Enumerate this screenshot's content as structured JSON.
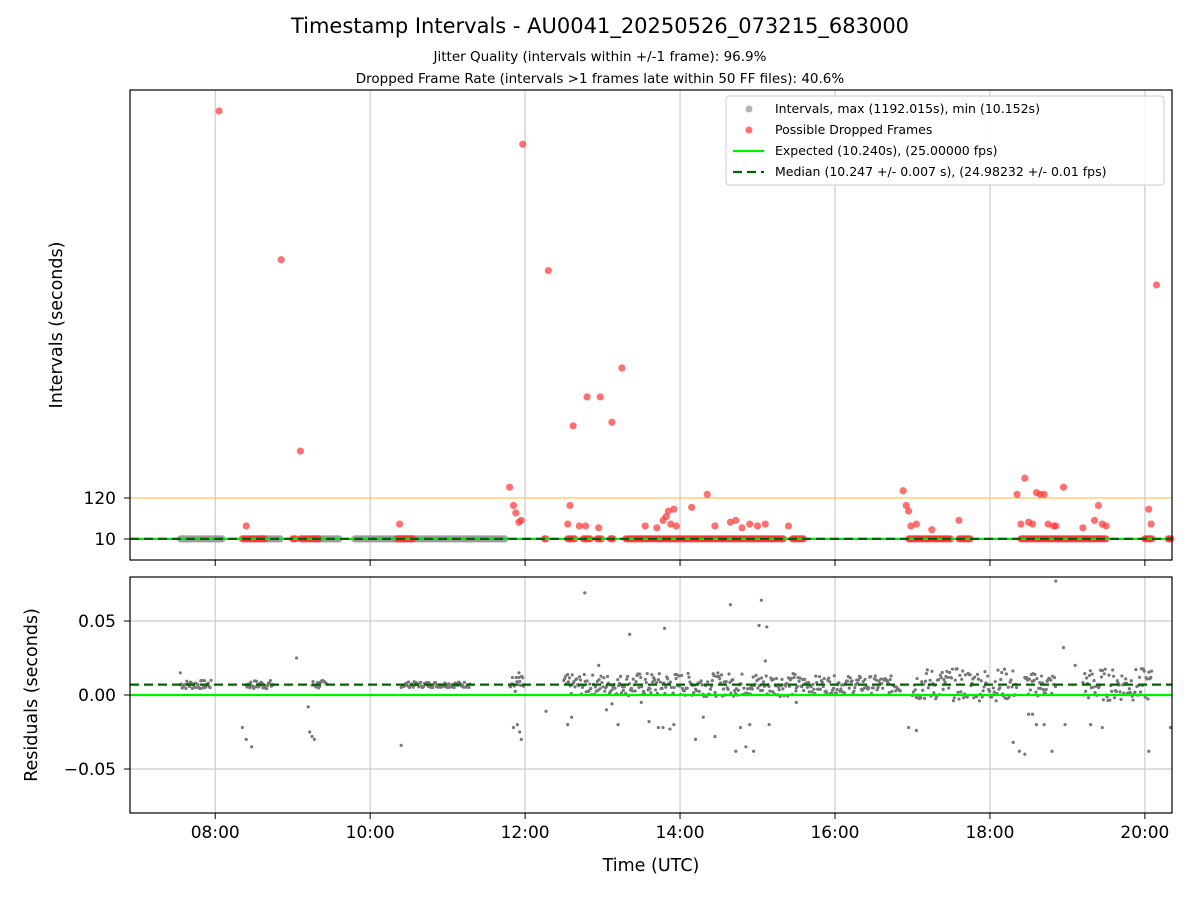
{
  "title": "Timestamp Intervals - AU0041_20250526_073215_683000",
  "subtitle_1": "Jitter Quality (intervals within +/-1 frame): 96.9%",
  "subtitle_2": "Dropped Frame Rate (intervals >1 frames late within 50 FF files): 40.6%",
  "colors": {
    "intervals": "#999999",
    "dropped": "#ff3333",
    "expected": "#00ee00",
    "median": "#006400",
    "threshold": "#ffc864",
    "residual_points": "#777777",
    "grid": "#cccccc"
  },
  "chart_data": [
    {
      "type": "scatter",
      "name": "intervals",
      "ylabel": "Intervals (seconds)",
      "yticks": [
        "10",
        "120"
      ],
      "grid": "x only",
      "legend_position": "top-right",
      "legend": [
        "Intervals, max (1192.015s), min (10.152s)",
        "Possible Dropped Frames",
        "Expected (10.240s), (25.00000 fps)",
        "Median (10.247 +/- 0.007 s), (24.98232 +/- 0.01 fps)"
      ],
      "expected_interval": 10.24,
      "median_interval": 10.247,
      "dropped_threshold": 120,
      "normal_segments_hours": [
        [
          7.55,
          8.1
        ],
        [
          8.6,
          8.85
        ],
        [
          9.3,
          9.6
        ],
        [
          9.8,
          11.75
        ]
      ],
      "dropped_outliers": [
        {
          "x": 8.05,
          "y": 1192.0
        },
        {
          "x": 8.4,
          "y": 45
        },
        {
          "x": 8.85,
          "y": 780
        },
        {
          "x": 9.1,
          "y": 250
        },
        {
          "x": 10.38,
          "y": 50
        },
        {
          "x": 11.8,
          "y": 150
        },
        {
          "x": 11.85,
          "y": 100
        },
        {
          "x": 11.88,
          "y": 80
        },
        {
          "x": 11.92,
          "y": 55
        },
        {
          "x": 11.95,
          "y": 60
        },
        {
          "x": 11.97,
          "y": 1100
        },
        {
          "x": 12.3,
          "y": 750
        },
        {
          "x": 12.55,
          "y": 50
        },
        {
          "x": 12.58,
          "y": 100
        },
        {
          "x": 12.62,
          "y": 320
        },
        {
          "x": 12.7,
          "y": 45
        },
        {
          "x": 12.78,
          "y": 45
        },
        {
          "x": 12.8,
          "y": 400
        },
        {
          "x": 12.95,
          "y": 40
        },
        {
          "x": 12.97,
          "y": 400
        },
        {
          "x": 13.12,
          "y": 330
        },
        {
          "x": 13.25,
          "y": 480
        },
        {
          "x": 13.55,
          "y": 45
        },
        {
          "x": 13.7,
          "y": 40
        },
        {
          "x": 13.78,
          "y": 60
        },
        {
          "x": 13.82,
          "y": 70
        },
        {
          "x": 13.85,
          "y": 85
        },
        {
          "x": 13.88,
          "y": 50
        },
        {
          "x": 13.92,
          "y": 90
        },
        {
          "x": 13.95,
          "y": 45
        },
        {
          "x": 14.15,
          "y": 95
        },
        {
          "x": 14.35,
          "y": 130
        },
        {
          "x": 14.45,
          "y": 45
        },
        {
          "x": 14.65,
          "y": 55
        },
        {
          "x": 14.72,
          "y": 60
        },
        {
          "x": 14.8,
          "y": 40
        },
        {
          "x": 14.9,
          "y": 50
        },
        {
          "x": 15.0,
          "y": 45
        },
        {
          "x": 15.1,
          "y": 50
        },
        {
          "x": 15.4,
          "y": 45
        },
        {
          "x": 16.88,
          "y": 140
        },
        {
          "x": 16.92,
          "y": 100
        },
        {
          "x": 16.95,
          "y": 85
        },
        {
          "x": 16.98,
          "y": 45
        },
        {
          "x": 17.05,
          "y": 50
        },
        {
          "x": 17.25,
          "y": 35
        },
        {
          "x": 17.6,
          "y": 60
        },
        {
          "x": 18.35,
          "y": 130
        },
        {
          "x": 18.4,
          "y": 50
        },
        {
          "x": 18.45,
          "y": 175
        },
        {
          "x": 18.5,
          "y": 55
        },
        {
          "x": 18.55,
          "y": 50
        },
        {
          "x": 18.6,
          "y": 135
        },
        {
          "x": 18.65,
          "y": 130
        },
        {
          "x": 18.7,
          "y": 130
        },
        {
          "x": 18.75,
          "y": 50
        },
        {
          "x": 18.82,
          "y": 45
        },
        {
          "x": 18.85,
          "y": 45
        },
        {
          "x": 18.95,
          "y": 150
        },
        {
          "x": 19.2,
          "y": 40
        },
        {
          "x": 19.35,
          "y": 60
        },
        {
          "x": 19.4,
          "y": 100
        },
        {
          "x": 19.45,
          "y": 50
        },
        {
          "x": 19.5,
          "y": 45
        },
        {
          "x": 20.05,
          "y": 90
        },
        {
          "x": 20.08,
          "y": 50
        },
        {
          "x": 20.15,
          "y": 710
        }
      ],
      "dropped_baseline_segments_hours": [
        [
          8.35,
          8.65
        ],
        [
          9.0,
          9.05
        ],
        [
          9.1,
          9.35
        ],
        [
          10.35,
          10.55
        ],
        [
          12.25,
          12.28
        ],
        [
          12.55,
          12.65
        ],
        [
          12.75,
          12.85
        ],
        [
          12.93,
          13.0
        ],
        [
          13.1,
          13.15
        ],
        [
          13.3,
          15.35
        ],
        [
          15.45,
          15.6
        ],
        [
          16.95,
          17.5
        ],
        [
          17.6,
          17.75
        ],
        [
          18.4,
          19.5
        ],
        [
          20.0,
          20.1
        ],
        [
          20.3,
          20.35
        ]
      ]
    },
    {
      "type": "scatter",
      "name": "residuals",
      "xlabel": "Time (UTC)",
      "ylabel": "Residuals (seconds)",
      "xticks": [
        "08:00",
        "10:00",
        "12:00",
        "14:00",
        "16:00",
        "18:00",
        "20:00"
      ],
      "yticks": [
        "−0.05",
        "0.00",
        "0.05"
      ],
      "xlim_hours": [
        6.9,
        20.35
      ],
      "ylim": [
        -0.08,
        0.08
      ],
      "grid": "x and y",
      "expected_residual": 0.0,
      "median_residual": 0.007,
      "outlier_points": [
        {
          "x": 7.55,
          "y": 0.015
        },
        {
          "x": 8.35,
          "y": -0.022
        },
        {
          "x": 8.4,
          "y": -0.03
        },
        {
          "x": 8.47,
          "y": -0.035
        },
        {
          "x": 9.05,
          "y": 0.025
        },
        {
          "x": 9.2,
          "y": -0.008
        },
        {
          "x": 9.22,
          "y": -0.025
        },
        {
          "x": 9.25,
          "y": -0.028
        },
        {
          "x": 9.28,
          "y": -0.03
        },
        {
          "x": 10.4,
          "y": -0.034
        },
        {
          "x": 11.85,
          "y": -0.022
        },
        {
          "x": 11.9,
          "y": -0.02
        },
        {
          "x": 11.93,
          "y": -0.025
        },
        {
          "x": 11.95,
          "y": -0.03
        },
        {
          "x": 11.92,
          "y": 0.015
        },
        {
          "x": 12.27,
          "y": -0.011
        },
        {
          "x": 12.55,
          "y": -0.02
        },
        {
          "x": 12.6,
          "y": -0.015
        },
        {
          "x": 12.77,
          "y": 0.069
        },
        {
          "x": 12.95,
          "y": 0.02
        },
        {
          "x": 13.05,
          "y": -0.01
        },
        {
          "x": 13.12,
          "y": -0.006
        },
        {
          "x": 13.2,
          "y": -0.02
        },
        {
          "x": 13.35,
          "y": 0.041
        },
        {
          "x": 13.5,
          "y": -0.005
        },
        {
          "x": 13.6,
          "y": -0.018
        },
        {
          "x": 13.72,
          "y": -0.022
        },
        {
          "x": 13.78,
          "y": -0.022
        },
        {
          "x": 13.8,
          "y": 0.045
        },
        {
          "x": 13.87,
          "y": -0.023
        },
        {
          "x": 13.92,
          "y": -0.02
        },
        {
          "x": 14.2,
          "y": -0.03
        },
        {
          "x": 14.3,
          "y": -0.015
        },
        {
          "x": 14.45,
          "y": -0.028
        },
        {
          "x": 14.65,
          "y": 0.061
        },
        {
          "x": 14.72,
          "y": -0.038
        },
        {
          "x": 14.78,
          "y": -0.022
        },
        {
          "x": 14.85,
          "y": -0.035
        },
        {
          "x": 14.9,
          "y": -0.02
        },
        {
          "x": 14.95,
          "y": -0.038
        },
        {
          "x": 15.02,
          "y": 0.047
        },
        {
          "x": 15.05,
          "y": 0.064
        },
        {
          "x": 15.1,
          "y": 0.023
        },
        {
          "x": 15.12,
          "y": 0.046
        },
        {
          "x": 15.15,
          "y": -0.02
        },
        {
          "x": 15.5,
          "y": -0.005
        },
        {
          "x": 16.95,
          "y": -0.022
        },
        {
          "x": 17.05,
          "y": -0.024
        },
        {
          "x": 18.3,
          "y": -0.032
        },
        {
          "x": 18.38,
          "y": -0.038
        },
        {
          "x": 18.45,
          "y": -0.04
        },
        {
          "x": 18.5,
          "y": -0.013
        },
        {
          "x": 18.55,
          "y": -0.013
        },
        {
          "x": 18.6,
          "y": -0.02
        },
        {
          "x": 18.7,
          "y": -0.02
        },
        {
          "x": 18.8,
          "y": -0.038
        },
        {
          "x": 18.85,
          "y": 0.077
        },
        {
          "x": 18.95,
          "y": 0.032
        },
        {
          "x": 18.97,
          "y": -0.02
        },
        {
          "x": 19.1,
          "y": 0.02
        },
        {
          "x": 19.3,
          "y": -0.02
        },
        {
          "x": 19.45,
          "y": -0.022
        },
        {
          "x": 20.05,
          "y": -0.038
        },
        {
          "x": 20.33,
          "y": -0.022
        }
      ]
    }
  ]
}
